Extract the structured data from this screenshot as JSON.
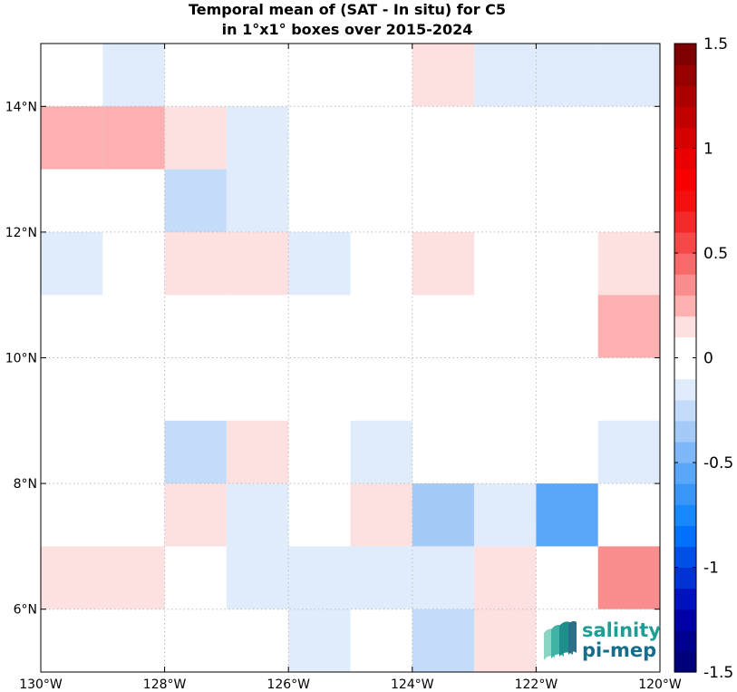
{
  "chart_data": {
    "type": "heatmap",
    "title": [
      "Temporal mean of (SAT - In situ) for C5",
      "in 1°x1° boxes over 2015-2024"
    ],
    "xlim": [
      -130,
      -120
    ],
    "ylim": [
      5,
      15
    ],
    "x_ticks": [
      {
        "value": -130,
        "label": "130°W"
      },
      {
        "value": -128,
        "label": "128°W"
      },
      {
        "value": -126,
        "label": "126°W"
      },
      {
        "value": -124,
        "label": "124°W"
      },
      {
        "value": -122,
        "label": "122°W"
      },
      {
        "value": -120,
        "label": "120°W"
      }
    ],
    "y_ticks": [
      {
        "value": 6,
        "label": "6°N"
      },
      {
        "value": 8,
        "label": "8°N"
      },
      {
        "value": 10,
        "label": "10°N"
      },
      {
        "value": 12,
        "label": "12°N"
      },
      {
        "value": 14,
        "label": "14°N"
      }
    ],
    "grid": true,
    "colorbar": {
      "range": [
        -1.5,
        1.5
      ],
      "ticks": [
        {
          "value": 1.5,
          "label": "1.5"
        },
        {
          "value": 1,
          "label": "1"
        },
        {
          "value": 0.5,
          "label": "0.5"
        },
        {
          "value": 0,
          "label": "0"
        },
        {
          "value": -0.5,
          "label": "-0.5"
        },
        {
          "value": -1,
          "label": "-1"
        },
        {
          "value": -1.5,
          "label": "-1.5"
        }
      ],
      "colors": [
        "#00007a",
        "#00008e",
        "#0000a6",
        "#0012bf",
        "#0032d4",
        "#0050e8",
        "#0070ff",
        "#1888ff",
        "#3896f8",
        "#5aa6f8",
        "#7fb8f8",
        "#a4caf8",
        "#c4dcf9",
        "#e0ecfb",
        "#ffffff",
        "#ffffff",
        "#fde0e0",
        "#fcb0b0",
        "#fa8e8e",
        "#f86a6a",
        "#f64848",
        "#f42a2a",
        "#f51010",
        "#fa0000",
        "#ea0000",
        "#d60000",
        "#c20000",
        "#ac0000",
        "#960000",
        "#7e0000"
      ]
    },
    "cells": [
      {
        "lon": -129,
        "lat": 14,
        "value": -0.15
      },
      {
        "lon": -124,
        "lat": 14,
        "value": 0.15
      },
      {
        "lon": -123,
        "lat": 14,
        "value": -0.15
      },
      {
        "lon": -122,
        "lat": 14,
        "value": -0.15
      },
      {
        "lon": -121,
        "lat": 14,
        "value": -0.15
      },
      {
        "lon": -130,
        "lat": 13,
        "value": 0.25
      },
      {
        "lon": -129,
        "lat": 13,
        "value": 0.25
      },
      {
        "lon": -128,
        "lat": 13,
        "value": 0.15
      },
      {
        "lon": -127,
        "lat": 13,
        "value": -0.15
      },
      {
        "lon": -128,
        "lat": 12,
        "value": -0.25
      },
      {
        "lon": -127,
        "lat": 12,
        "value": -0.15
      },
      {
        "lon": -130,
        "lat": 11,
        "value": -0.2
      },
      {
        "lon": -128,
        "lat": 11,
        "value": 0.15
      },
      {
        "lon": -127,
        "lat": 11,
        "value": 0.15
      },
      {
        "lon": -126,
        "lat": 11,
        "value": -0.15
      },
      {
        "lon": -124,
        "lat": 11,
        "value": 0.15
      },
      {
        "lon": -121,
        "lat": 11,
        "value": 0.15
      },
      {
        "lon": -121,
        "lat": 10,
        "value": 0.25
      },
      {
        "lon": -128,
        "lat": 8,
        "value": -0.25
      },
      {
        "lon": -127,
        "lat": 8,
        "value": 0.15
      },
      {
        "lon": -125,
        "lat": 8,
        "value": -0.15
      },
      {
        "lon": -121,
        "lat": 8,
        "value": -0.15
      },
      {
        "lon": -128,
        "lat": 7,
        "value": 0.15
      },
      {
        "lon": -127,
        "lat": 7,
        "value": -0.15
      },
      {
        "lon": -125,
        "lat": 7,
        "value": 0.15
      },
      {
        "lon": -124,
        "lat": 7,
        "value": -0.3
      },
      {
        "lon": -123,
        "lat": 7,
        "value": -0.15
      },
      {
        "lon": -122,
        "lat": 7,
        "value": -0.6
      },
      {
        "lon": -130,
        "lat": 6,
        "value": 0.15
      },
      {
        "lon": -129,
        "lat": 6,
        "value": 0.15
      },
      {
        "lon": -127,
        "lat": 6,
        "value": -0.15
      },
      {
        "lon": -126,
        "lat": 6,
        "value": -0.2
      },
      {
        "lon": -125,
        "lat": 6,
        "value": -0.2
      },
      {
        "lon": -124,
        "lat": 6,
        "value": -0.2
      },
      {
        "lon": -123,
        "lat": 6,
        "value": 0.15
      },
      {
        "lon": -121,
        "lat": 6,
        "value": 0.3
      },
      {
        "lon": -126,
        "lat": 5,
        "value": -0.15
      },
      {
        "lon": -124,
        "lat": 5,
        "value": -0.25
      },
      {
        "lon": -123,
        "lat": 5,
        "value": 0.15
      }
    ]
  },
  "logo": {
    "line1": "salinity",
    "line2": "pi-mep",
    "color1": "#1e9e94",
    "color2": "#176e8a"
  }
}
